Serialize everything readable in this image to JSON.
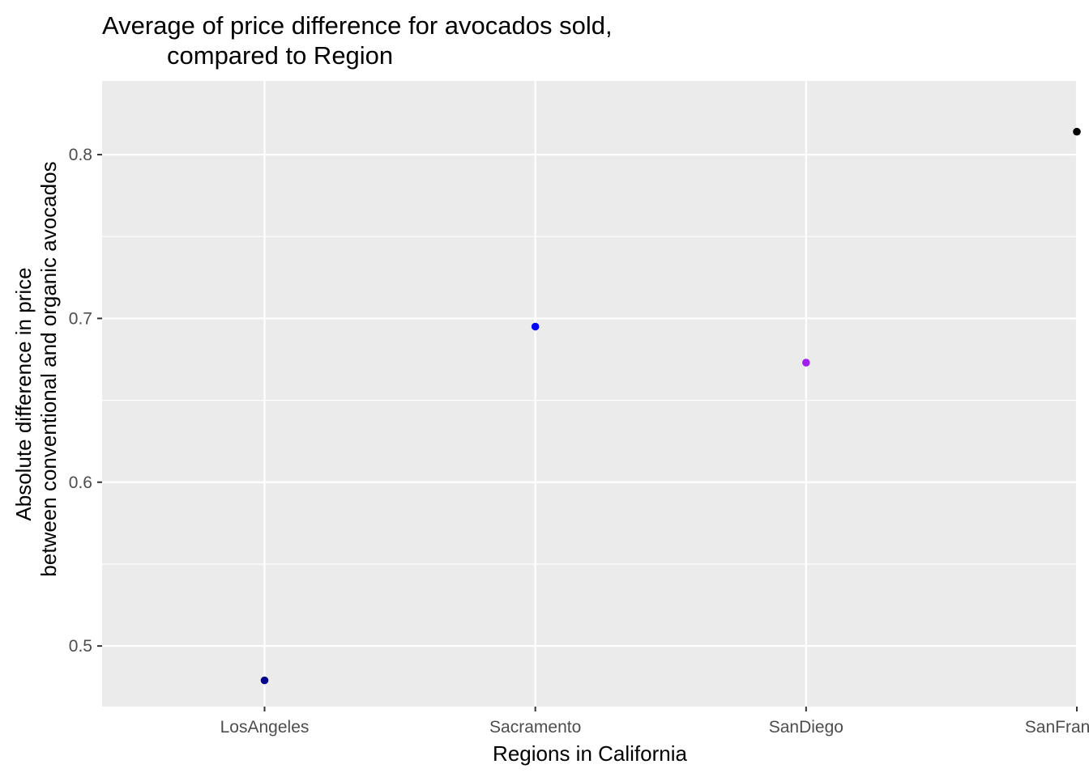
{
  "chart_data": {
    "type": "scatter",
    "title": [
      "Average of price difference for avocados sold,",
      "compared to Region"
    ],
    "xlabel": "Regions in California",
    "ylabel": [
      "Absolute difference in price",
      "between conventional and organic avocados"
    ],
    "categories": [
      "LosAngeles",
      "Sacramento",
      "SanDiego",
      "SanFrancisco"
    ],
    "values": [
      0.479,
      0.695,
      0.673,
      0.814
    ],
    "point_colors": [
      "#00008b",
      "#0000ff",
      "#a020f0",
      "#000000"
    ],
    "ylim": [
      0.463,
      0.845
    ],
    "yticks": [
      0.5,
      0.6,
      0.7,
      0.8
    ],
    "ytick_labels": [
      "0.5",
      "0.6",
      "0.7",
      "0.8"
    ],
    "grid": true,
    "panel_background": "#ebebeb",
    "grid_color": "#ffffff",
    "legend": "none"
  }
}
